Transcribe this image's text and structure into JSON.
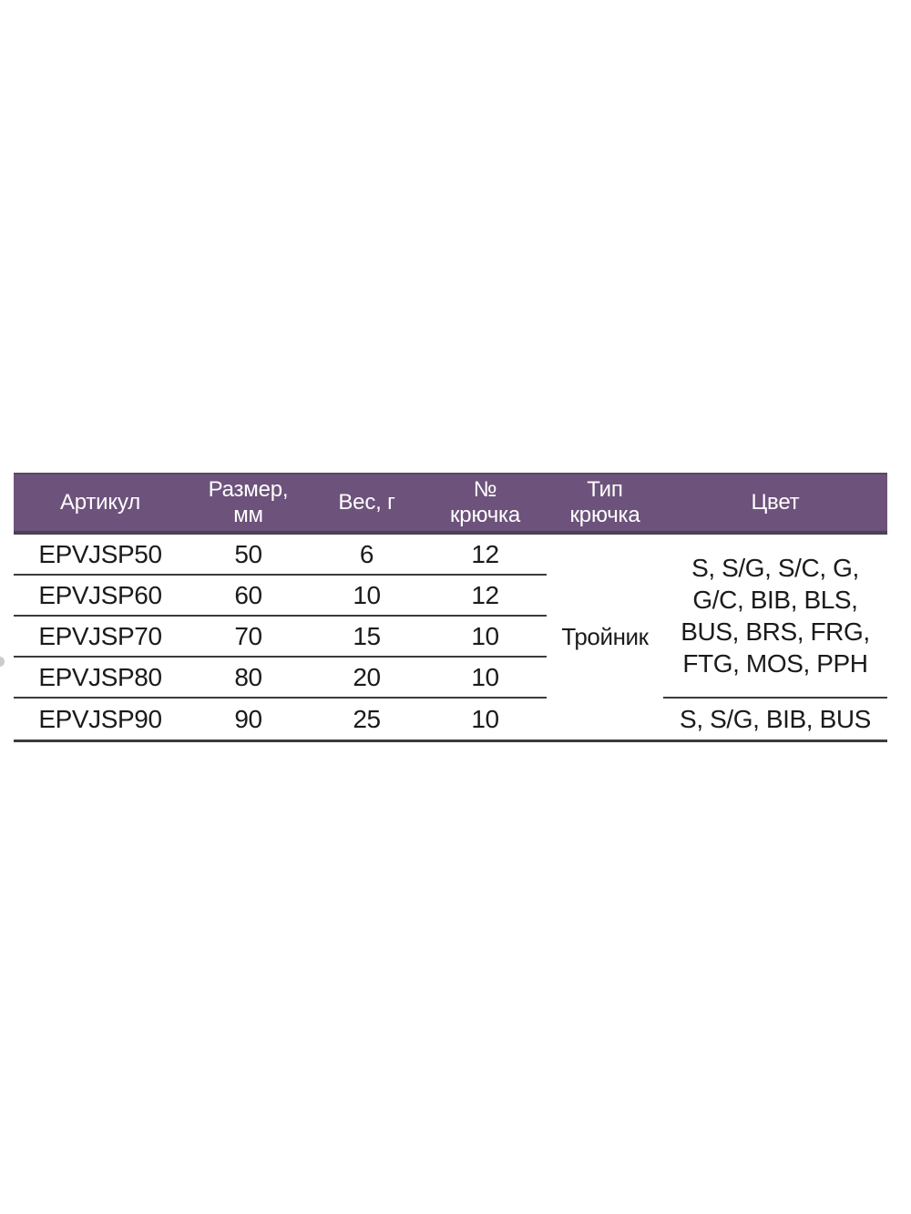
{
  "colors": {
    "header_bg": "#6d527b",
    "header_top": "#5a4865",
    "header_bottom": "#4a4452",
    "line": "#3b3b3b",
    "text": "#1b1b1b",
    "header_text": "#ffffff",
    "page_bg": "#ffffff"
  },
  "table": {
    "headers": [
      {
        "id": "article",
        "line1": "Артикул",
        "line2": ""
      },
      {
        "id": "size-mm",
        "line1": "Размер,",
        "line2": "мм"
      },
      {
        "id": "weight-g",
        "line1": "Вес, г",
        "line2": ""
      },
      {
        "id": "hook-number",
        "line1": "№",
        "line2": "крючка"
      },
      {
        "id": "hook-type",
        "line1": "Тип",
        "line2": "крючка"
      },
      {
        "id": "color",
        "line1": "Цвет",
        "line2": ""
      }
    ],
    "rows": [
      {
        "article": "EPVJSP50",
        "size_mm": "50",
        "weight_g": "6",
        "hook_no": "12"
      },
      {
        "article": "EPVJSP60",
        "size_mm": "60",
        "weight_g": "10",
        "hook_no": "12"
      },
      {
        "article": "EPVJSP70",
        "size_mm": "70",
        "weight_g": "15",
        "hook_no": "10"
      },
      {
        "article": "EPVJSP80",
        "size_mm": "80",
        "weight_g": "20",
        "hook_no": "10"
      },
      {
        "article": "EPVJSP90",
        "size_mm": "90",
        "weight_g": "25",
        "hook_no": "10"
      }
    ],
    "hook_type_value": "Тройник",
    "colors_rows_1_4_lines": [
      "S, S/G, S/C, G,",
      "G/C, BIB, BLS,",
      "BUS, BRS, FRG,",
      "FTG, MOS, PPH"
    ],
    "colors_rows_1_4_full": "S, S/G, S/C, G, G/C, BIB, BLS, BUS, BRS, FRG, FTG, MOS, PPH",
    "colors_row_5": "S, S/G, BIB, BUS"
  }
}
